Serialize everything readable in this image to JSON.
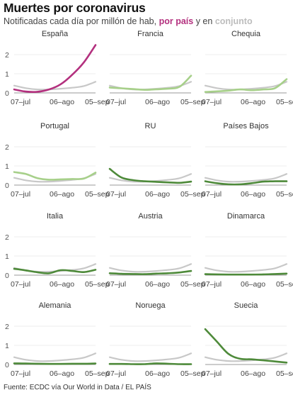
{
  "header": {
    "title": "Muertes por coronavirus",
    "subtitle_prefix": "Notificadas cada día por millón de hab,",
    "subtitle_country": "por país",
    "subtitle_mid": "y en",
    "subtitle_all": "conjunto"
  },
  "footer": {
    "source": "Fuente: ECDC vía Our World in Data / EL PAÍS"
  },
  "colors": {
    "spain": "#b3307e",
    "light_green": "#a7d08a",
    "dark_green": "#4e8a3a",
    "aggregate": "#c8c8c8",
    "baseline": "#999999",
    "country_highlight": "#b3307e",
    "all_highlight": "#bdbdbd"
  },
  "chart_data": {
    "type": "line",
    "x_ticks": [
      "07–jul",
      "06–ago",
      "05–sep"
    ],
    "y_ticks": [
      0,
      1,
      2
    ],
    "ylim": [
      0,
      2.6
    ],
    "x": [
      "2020-06-25",
      "2020-07-07",
      "2020-07-19",
      "2020-07-31",
      "2020-08-12",
      "2020-08-24",
      "2020-09-05",
      "2020-09-17"
    ],
    "aggregate": [
      0.38,
      0.25,
      0.18,
      0.18,
      0.22,
      0.27,
      0.36,
      0.58
    ],
    "panels": [
      {
        "country": "España",
        "color": "spain",
        "values": [
          0.18,
          0.07,
          0.06,
          0.18,
          0.45,
          0.95,
          1.6,
          2.5
        ]
      },
      {
        "country": "Francia",
        "color": "light_green",
        "values": [
          0.28,
          0.24,
          0.2,
          0.16,
          0.19,
          0.22,
          0.32,
          0.9
        ]
      },
      {
        "country": "Chequia",
        "color": "light_green",
        "values": [
          0.05,
          0.08,
          0.12,
          0.18,
          0.14,
          0.18,
          0.25,
          0.72
        ]
      },
      {
        "country": "Portugal",
        "color": "light_green",
        "values": [
          0.68,
          0.58,
          0.36,
          0.28,
          0.3,
          0.32,
          0.34,
          0.65
        ]
      },
      {
        "country": "RU",
        "color": "dark_green",
        "values": [
          0.85,
          0.4,
          0.26,
          0.2,
          0.17,
          0.14,
          0.12,
          0.18
        ]
      },
      {
        "country": "Países Bajos",
        "color": "dark_green",
        "values": [
          0.2,
          0.1,
          0.04,
          0.04,
          0.1,
          0.18,
          0.2,
          0.2
        ]
      },
      {
        "country": "Italia",
        "color": "dark_green",
        "values": [
          0.33,
          0.25,
          0.15,
          0.1,
          0.26,
          0.22,
          0.16,
          0.28
        ]
      },
      {
        "country": "Austria",
        "color": "dark_green",
        "values": [
          0.1,
          0.07,
          0.06,
          0.05,
          0.08,
          0.1,
          0.14,
          0.22
        ]
      },
      {
        "country": "Dinamarca",
        "color": "dark_green",
        "values": [
          0.05,
          0.04,
          0.03,
          0.03,
          0.03,
          0.04,
          0.06,
          0.08
        ]
      },
      {
        "country": "Alemania",
        "color": "dark_green",
        "values": [
          0.06,
          0.05,
          0.04,
          0.03,
          0.03,
          0.04,
          0.04,
          0.05
        ]
      },
      {
        "country": "Noruega",
        "color": "dark_green",
        "values": [
          0.03,
          0.03,
          0.02,
          0.02,
          0.06,
          0.04,
          0.02,
          0.02
        ]
      },
      {
        "country": "Suecia",
        "color": "dark_green",
        "values": [
          1.85,
          1.2,
          0.55,
          0.3,
          0.27,
          0.22,
          0.16,
          0.1
        ]
      }
    ]
  }
}
